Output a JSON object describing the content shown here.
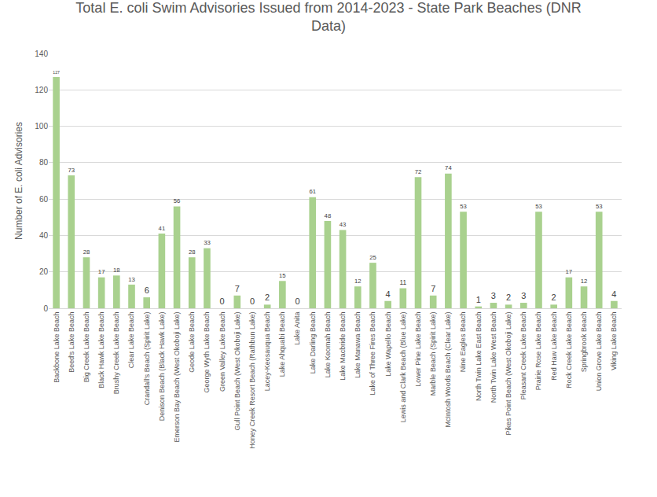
{
  "chart_data": {
    "type": "bar",
    "title": "Total E. coli Swim Advisories Issued from 2014-2023 - State Park Beaches (DNR Data)",
    "y_label": "Number of E. coli Advisories",
    "categories": [
      "Backbone Lake Beach",
      "Beed's Lake Beach",
      "Big Creek Lake Beach",
      "Black Hawk Lake Beach",
      "Brushy Creek Lake Beach",
      "Clear Lake Beach",
      "Crandall's Beach (Spirit Lake)",
      "Denison Beach (Black Hawk Lake)",
      "Emerson Bay Beach (West Okoboji Lake)",
      "Geode Lake Beach",
      "George Wyth Lake Beach",
      "Green Valley Lake Beach",
      "Gull Point Beach (West Okoboji Lake)",
      "Honey Creek Resort Beach (Rathbun Lake)",
      "Lacey-Keosauqua Beach",
      "Lake Ahquabi Beach",
      "Lake Anita",
      "Lake Darling Beach",
      "Lake Keomah Beach",
      "Lake Macbride Beach",
      "Lake Manawa Beach",
      "Lake of Three Fires Beach",
      "Lake Wapello Beach",
      "Lewis and Clark Beach (Blue Lake)",
      "Lower Pine Lake Beach",
      "Marble Beach (Spirit Lake)",
      "McIntosh Woods Beach (Clear Lake)",
      "Nine Eagles Beach",
      "North Twin Lake East Beach",
      "North Twin Lake West Beach",
      "Pikes Point Beach (West Okoboji Lake)",
      "Pleasant Creek Lake Beach",
      "Prairie Rose Lake Beach",
      "Red Haw Lake Beach",
      "Rock Creek Lake Beach",
      "Springbrook Beach",
      "Union Grove Lake Beach",
      "Viking Lake Beach"
    ],
    "values": [
      127,
      73,
      28,
      17,
      18,
      13,
      6,
      41,
      56,
      28,
      33,
      0,
      7,
      0,
      2,
      15,
      0,
      61,
      48,
      43,
      12,
      25,
      4,
      11,
      72,
      7,
      74,
      53,
      1,
      3,
      2,
      3,
      53,
      2,
      17,
      12,
      53,
      4
    ],
    "color": "#a9d18e",
    "ylim": [
      0,
      140
    ],
    "yticks": [
      0,
      20,
      40,
      60,
      80,
      100,
      120,
      140
    ],
    "grid": true,
    "data_labels": true
  }
}
